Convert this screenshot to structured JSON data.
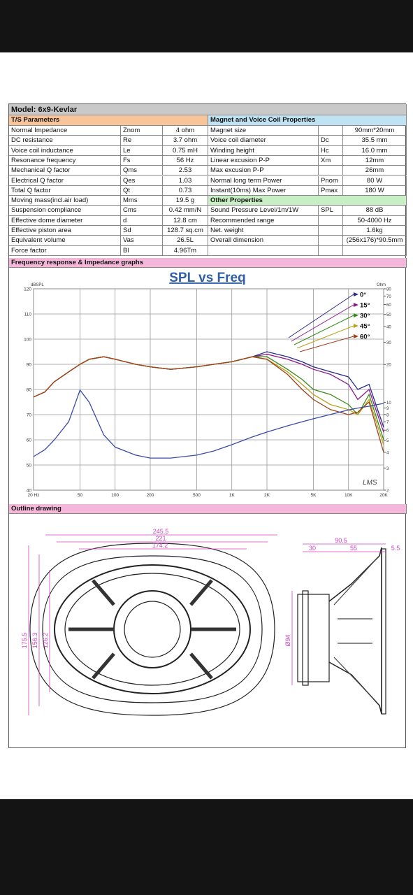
{
  "model": "Model: 6x9-Kevlar",
  "ts_parameters": {
    "title": "T/S Parameters",
    "rows": [
      {
        "name": "Normal Impedance",
        "symbol": "Znom",
        "value": "4 ohm"
      },
      {
        "name": "DC resistance",
        "symbol": "Re",
        "value": "3.7 ohm"
      },
      {
        "name": "Voice coil inductance",
        "symbol": "Le",
        "value": "0.75 mH"
      },
      {
        "name": "Resonance frequency",
        "symbol": "Fs",
        "value": "56 Hz"
      },
      {
        "name": "Mechanical Q factor",
        "symbol": "Qms",
        "value": "2.53"
      },
      {
        "name": "Electrical Q factor",
        "symbol": "Qes",
        "value": "1.03"
      },
      {
        "name": "Total Q factor",
        "symbol": "Qt",
        "value": "0.73"
      },
      {
        "name": "Moving mass(incl.air load)",
        "symbol": "Mms",
        "value": "19.5 g"
      },
      {
        "name": "Suspension compliance",
        "symbol": "Cms",
        "value": "0.42 mm/N"
      },
      {
        "name": "Effective dome diameter",
        "symbol": "d",
        "value": "12.8 cm"
      },
      {
        "name": "Effective piston area",
        "symbol": "Sd",
        "value": "128.7 sq.cm"
      },
      {
        "name": "Equivalent volume",
        "symbol": "Vas",
        "value": "26.5L"
      },
      {
        "name": "Force factor",
        "symbol": "Bl",
        "value": "4.96Tm"
      }
    ]
  },
  "magnet_properties": {
    "title": "Magnet and Voice Coil Properties",
    "rows": [
      {
        "name": "Magnet size",
        "value": "90mm*20mm"
      },
      {
        "name": "Voice coil diameter",
        "symbol": "Dc",
        "value": "35.5 mm"
      },
      {
        "name": "Winding height",
        "symbol": "Hc",
        "value": "16.0 mm"
      },
      {
        "name": "Linear excusion P-P",
        "symbol": "Xm",
        "value": "12mm"
      },
      {
        "name": "Max excusion P-P",
        "value": "26mm"
      },
      {
        "name": "Normal long term Power",
        "symbol": "Pnom",
        "value": "80 W"
      },
      {
        "name": "Instant(10ms) Max Power",
        "symbol": "Pmax",
        "value": "180 W"
      }
    ]
  },
  "other_properties": {
    "title": "Other Properties",
    "rows": [
      {
        "name": "Sound Pressure Level/1m/1W",
        "symbol": "SPL",
        "value": "88 dB"
      },
      {
        "name": "Recommended range",
        "value": "50-4000 Hz"
      },
      {
        "name": "Net. weight",
        "value": "1.6kg"
      },
      {
        "name": "Overall dimension",
        "value": "(256x176)*90.5mm"
      }
    ]
  },
  "graph_section": {
    "title": "Frequency response & Impedance graphs"
  },
  "chart_data": {
    "type": "line",
    "title": "SPL vs Freq",
    "y_label": "dBSPL",
    "y2_label": "Ohm",
    "watermark": "LMS",
    "log_x": true,
    "log_y2": true,
    "grid": true,
    "x": [
      20,
      25,
      30,
      40,
      50,
      60,
      80,
      100,
      150,
      200,
      300,
      500,
      700,
      1000,
      1500,
      2000,
      3000,
      4000,
      5000,
      7000,
      10000,
      12000,
      15000,
      20000
    ],
    "xlim": [
      20,
      20000
    ],
    "xticks": [
      {
        "value": 20,
        "label": "20 Hz"
      },
      50,
      100,
      200,
      500,
      {
        "value": 1000,
        "label": "1K"
      },
      {
        "value": 2000,
        "label": "2K"
      },
      {
        "value": 5000,
        "label": "5K"
      },
      {
        "value": 10000,
        "label": "10K"
      },
      {
        "value": 20000,
        "label": "20K"
      }
    ],
    "ylim": [
      40,
      120
    ],
    "yticks": [
      40,
      50,
      60,
      70,
      80,
      90,
      100,
      110,
      120
    ],
    "y2lim": [
      2,
      80
    ],
    "y2ticks": [
      2,
      3,
      4,
      5,
      6,
      7,
      8,
      9,
      10,
      20,
      30,
      40,
      50,
      60,
      70,
      80
    ],
    "series": [
      {
        "name": "0°",
        "color": "#2b2b8c",
        "values": [
          77,
          79,
          83,
          87,
          90,
          92,
          93,
          92,
          90,
          89,
          88,
          89,
          90,
          91,
          93,
          95,
          93,
          91,
          89,
          87,
          85,
          80,
          82,
          65
        ]
      },
      {
        "name": "15°",
        "color": "#8b1a8b",
        "values": [
          77,
          79,
          83,
          87,
          90,
          92,
          93,
          92,
          90,
          89,
          88,
          89,
          90,
          91,
          93,
          94,
          92,
          90,
          88,
          86,
          82,
          76,
          80,
          63
        ]
      },
      {
        "name": "30°",
        "color": "#3a8a1a",
        "values": [
          77,
          79,
          83,
          87,
          90,
          92,
          93,
          92,
          90,
          89,
          88,
          89,
          90,
          91,
          93,
          93,
          88,
          84,
          80,
          78,
          74,
          70,
          78,
          60
        ]
      },
      {
        "name": "45°",
        "color": "#b5a21a",
        "values": [
          77,
          79,
          83,
          87,
          90,
          92,
          93,
          92,
          90,
          89,
          88,
          89,
          90,
          91,
          93,
          92,
          87,
          82,
          78,
          74,
          72,
          70,
          76,
          58
        ]
      },
      {
        "name": "60°",
        "color": "#a0401a",
        "values": [
          77,
          79,
          83,
          87,
          90,
          92,
          93,
          92,
          90,
          89,
          88,
          89,
          90,
          91,
          93,
          92,
          86,
          80,
          76,
          72,
          70,
          71,
          75,
          55
        ]
      },
      {
        "color": "#3a4aa8",
        "axis": "y2",
        "values": [
          3.7,
          4.2,
          5,
          7,
          12.5,
          10,
          5.5,
          4.4,
          3.8,
          3.6,
          3.6,
          3.8,
          4.1,
          4.6,
          5.3,
          5.8,
          6.5,
          7,
          7.4,
          8,
          8.7,
          9,
          9.3,
          9.8
        ]
      }
    ]
  },
  "outline_section": {
    "title": "Outline drawing",
    "dimensions": {
      "overall_width": "245.5",
      "frame_width": "221",
      "mount_width": "174.2",
      "overall_height": "175.5",
      "frame_height": "156.3",
      "mount_height": "126.2",
      "magnet_diameter": "Ø94",
      "depth": "90.5",
      "magnet_depth": "30",
      "frame_depth": "55",
      "flange": "5.5"
    }
  }
}
